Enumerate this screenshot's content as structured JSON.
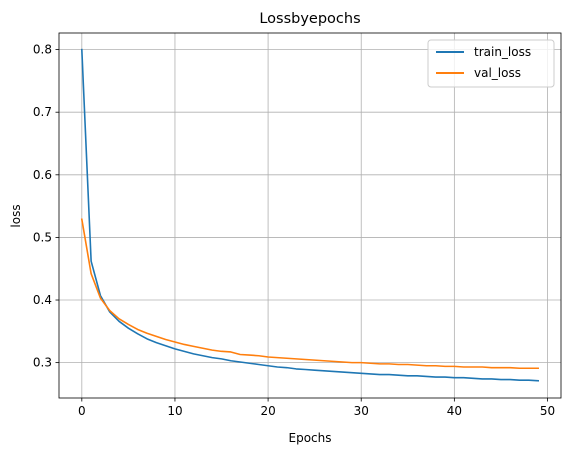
{
  "chart_data": {
    "type": "line",
    "title": "Lossbyepochs",
    "xlabel": "Epochs",
    "ylabel": "loss",
    "xlim": [
      -2.45,
      51.45
    ],
    "ylim": [
      0.2435,
      0.8265
    ],
    "xticks": [
      0,
      10,
      20,
      30,
      40,
      50
    ],
    "yticks": [
      0.3,
      0.4,
      0.5,
      0.6,
      0.7,
      0.8
    ],
    "xtick_labels": [
      "0",
      "10",
      "20",
      "30",
      "40",
      "50"
    ],
    "ytick_labels": [
      "0.3",
      "0.4",
      "0.5",
      "0.6",
      "0.7",
      "0.8"
    ],
    "grid": true,
    "legend_position": "top-right",
    "x": [
      0,
      1,
      2,
      3,
      4,
      5,
      6,
      7,
      8,
      9,
      10,
      11,
      12,
      13,
      14,
      15,
      16,
      17,
      18,
      19,
      20,
      21,
      22,
      23,
      24,
      25,
      26,
      27,
      28,
      29,
      30,
      31,
      32,
      33,
      34,
      35,
      36,
      37,
      38,
      39,
      40,
      41,
      42,
      43,
      44,
      45,
      46,
      47,
      48,
      49
    ],
    "series": [
      {
        "name": "train_loss",
        "color": "#1f77b4",
        "values": [
          0.8,
          0.462,
          0.407,
          0.381,
          0.366,
          0.355,
          0.346,
          0.338,
          0.332,
          0.327,
          0.322,
          0.318,
          0.314,
          0.311,
          0.308,
          0.306,
          0.303,
          0.301,
          0.299,
          0.297,
          0.295,
          0.293,
          0.292,
          0.29,
          0.289,
          0.288,
          0.287,
          0.286,
          0.285,
          0.284,
          0.283,
          0.282,
          0.281,
          0.281,
          0.28,
          0.279,
          0.279,
          0.278,
          0.277,
          0.277,
          0.276,
          0.276,
          0.275,
          0.274,
          0.274,
          0.273,
          0.273,
          0.272,
          0.272,
          0.271
        ]
      },
      {
        "name": "val_loss",
        "color": "#ff7f0e",
        "values": [
          0.529,
          0.442,
          0.403,
          0.383,
          0.37,
          0.361,
          0.353,
          0.347,
          0.342,
          0.337,
          0.333,
          0.329,
          0.326,
          0.323,
          0.32,
          0.318,
          0.317,
          0.313,
          0.312,
          0.311,
          0.309,
          0.308,
          0.307,
          0.306,
          0.305,
          0.304,
          0.303,
          0.302,
          0.301,
          0.3,
          0.3,
          0.299,
          0.298,
          0.298,
          0.297,
          0.297,
          0.296,
          0.295,
          0.295,
          0.294,
          0.294,
          0.293,
          0.293,
          0.293,
          0.292,
          0.292,
          0.292,
          0.291,
          0.291,
          0.291
        ]
      }
    ]
  }
}
